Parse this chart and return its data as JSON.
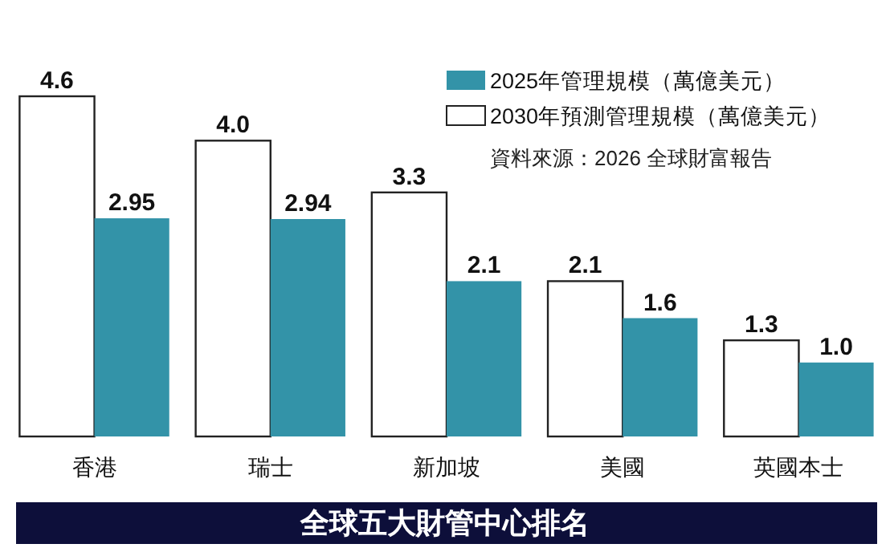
{
  "chart_data": {
    "type": "bar",
    "title": "全球五大財管中心排名",
    "categories": [
      "香港",
      "瑞士",
      "新加坡",
      "美國",
      "英國本士"
    ],
    "series": [
      {
        "name": "2030年預測管理規模（萬億美元）",
        "color": "#ffffff",
        "values": [
          4.6,
          4.0,
          3.3,
          2.1,
          1.3
        ],
        "value_labels": [
          "4.6",
          "4.0",
          "3.3",
          "2.1",
          "1.3"
        ]
      },
      {
        "name": "2025年管理規模（萬億美元）",
        "color": "#3393a8",
        "values": [
          2.95,
          2.94,
          2.1,
          1.6,
          1.0
        ],
        "value_labels": [
          "2.95",
          "2.94",
          "2.1",
          "1.6",
          "1.0"
        ]
      }
    ],
    "legend": "top right",
    "annotations": [
      "資料來源：2026 全球財富報告"
    ]
  }
}
